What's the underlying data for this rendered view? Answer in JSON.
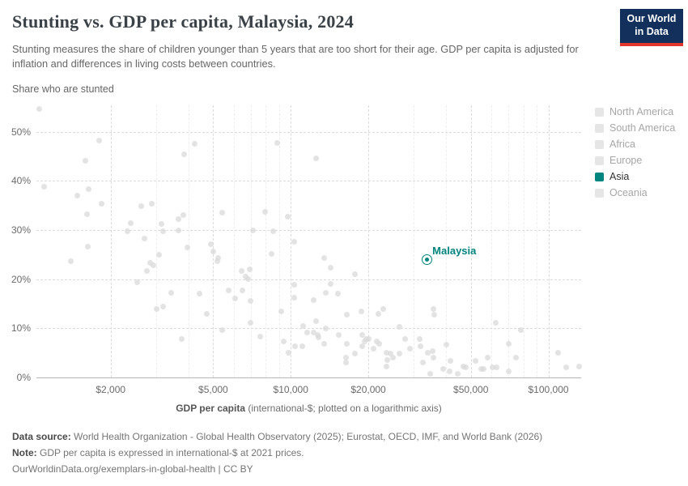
{
  "header": {
    "title": "Stunting vs. GDP per capita, Malaysia, 2024",
    "subtitle": "Stunting measures the share of children younger than 5 years that are too short for their age. GDP per capita is adjusted for inflation and differences in living costs between countries.",
    "logo": {
      "line1": "Our World",
      "line2": "in Data",
      "bg_color": "#12305b",
      "bar_color": "#e0362c"
    }
  },
  "chart_data": {
    "type": "scatter",
    "title": "Stunting vs. GDP per capita, Malaysia, 2024",
    "ylabel": "Share who are stunted",
    "xlabel_bold": "GDP per capita",
    "xlabel_rest": " (international-$; plotted on a logarithmic axis)",
    "x_scale": "log",
    "grid": true,
    "xlim": [
      1030,
      134000
    ],
    "ylim": [
      0,
      55.4
    ],
    "x_ticks": [
      {
        "value": 2000,
        "label": "$2,000"
      },
      {
        "value": 5000,
        "label": "$5,000"
      },
      {
        "value": 10000,
        "label": "$10,000"
      },
      {
        "value": 20000,
        "label": "$20,000"
      },
      {
        "value": 50000,
        "label": "$50,000"
      },
      {
        "value": 100000,
        "label": "$100,000"
      }
    ],
    "x_minor_ticks": [
      3000,
      4000,
      6000,
      7000,
      8000,
      9000,
      30000,
      40000,
      60000,
      70000,
      80000,
      90000
    ],
    "y_ticks": [
      {
        "value": 0,
        "label": "0%"
      },
      {
        "value": 10,
        "label": "10%"
      },
      {
        "value": 20,
        "label": "20%"
      },
      {
        "value": 30,
        "label": "30%"
      },
      {
        "value": 40,
        "label": "40%"
      },
      {
        "value": 50,
        "label": "50%"
      }
    ],
    "highlight": {
      "name": "Malaysia",
      "gdp": 33700,
      "stunting_pct": 24.0,
      "color": "#00847e"
    },
    "point_color": "#d9d9d9",
    "points": [
      [
        1060,
        54.6
      ],
      [
        1800,
        48.3
      ],
      [
        4240,
        47.5
      ],
      [
        3860,
        45.4
      ],
      [
        1590,
        44.1
      ],
      [
        1100,
        38.8
      ],
      [
        1640,
        38.3
      ],
      [
        1480,
        37.0
      ],
      [
        1840,
        35.3
      ],
      [
        2620,
        34.8
      ],
      [
        2880,
        35.3
      ],
      [
        1620,
        33.2
      ],
      [
        3840,
        33.0
      ],
      [
        3670,
        32.2
      ],
      [
        2390,
        31.4
      ],
      [
        3140,
        31.2
      ],
      [
        2330,
        29.7
      ],
      [
        3200,
        29.7
      ],
      [
        3670,
        29.9
      ],
      [
        2700,
        28.2
      ],
      [
        8850,
        47.7
      ],
      [
        12500,
        44.6
      ],
      [
        5420,
        33.5
      ],
      [
        7940,
        33.8
      ],
      [
        9720,
        32.8
      ],
      [
        7130,
        30.0
      ],
      [
        8540,
        29.7
      ],
      [
        10300,
        27.7
      ],
      [
        1630,
        26.6
      ],
      [
        1400,
        23.6
      ],
      [
        3090,
        24.9
      ],
      [
        3980,
        26.4
      ],
      [
        4900,
        27.1
      ],
      [
        5010,
        25.7
      ],
      [
        5190,
        23.6
      ],
      [
        2840,
        23.3
      ],
      [
        2920,
        22.8
      ],
      [
        2770,
        21.6
      ],
      [
        2530,
        19.3
      ],
      [
        3440,
        17.2
      ],
      [
        4430,
        17.0
      ],
      [
        3020,
        13.9
      ],
      [
        3200,
        14.4
      ],
      [
        4730,
        12.9
      ],
      [
        3780,
        7.8
      ],
      [
        8410,
        25.1
      ],
      [
        5230,
        24.4
      ],
      [
        6440,
        21.6
      ],
      [
        6920,
        22.0
      ],
      [
        6680,
        20.5
      ],
      [
        6830,
        20.1
      ],
      [
        13500,
        24.3
      ],
      [
        14300,
        22.3
      ],
      [
        17800,
        21.0
      ],
      [
        14300,
        19.1
      ],
      [
        10300,
        18.8
      ],
      [
        5740,
        17.7
      ],
      [
        6490,
        17.8
      ],
      [
        13700,
        17.3
      ],
      [
        15200,
        17.0
      ],
      [
        6080,
        16.0
      ],
      [
        10300,
        16.2
      ],
      [
        6970,
        15.5
      ],
      [
        12300,
        15.8
      ],
      [
        9170,
        13.4
      ],
      [
        22900,
        14.0
      ],
      [
        21900,
        12.9
      ],
      [
        18850,
        13.4
      ],
      [
        16560,
        12.7
      ],
      [
        6970,
        11.1
      ],
      [
        5420,
        9.7
      ],
      [
        11200,
        10.4
      ],
      [
        12500,
        11.4
      ],
      [
        11600,
        9.2
      ],
      [
        12300,
        9.1
      ],
      [
        12700,
        8.6
      ],
      [
        12800,
        8.1
      ],
      [
        13700,
        9.9
      ],
      [
        15400,
        8.6
      ],
      [
        7610,
        8.3
      ],
      [
        9370,
        7.4
      ],
      [
        9790,
        5.1
      ],
      [
        10400,
        6.4
      ],
      [
        11100,
        6.4
      ],
      [
        13500,
        6.9
      ],
      [
        16500,
        6.9
      ],
      [
        17700,
        4.8
      ],
      [
        16400,
        4.0
      ],
      [
        16400,
        3.1
      ],
      [
        19000,
        8.7
      ],
      [
        19700,
        7.9
      ],
      [
        19400,
        7.4
      ],
      [
        20100,
        7.8
      ],
      [
        21500,
        7.3
      ],
      [
        22100,
        6.9
      ],
      [
        19000,
        6.3
      ],
      [
        21000,
        5.9
      ],
      [
        23600,
        5.1
      ],
      [
        24400,
        4.8
      ],
      [
        24900,
        4.0
      ],
      [
        23700,
        3.5
      ],
      [
        23600,
        2.3
      ],
      [
        26400,
        10.3
      ],
      [
        35800,
        13.9
      ],
      [
        36100,
        12.7
      ],
      [
        62300,
        11.1
      ],
      [
        78000,
        9.7
      ],
      [
        27800,
        7.8
      ],
      [
        26400,
        4.8
      ],
      [
        29000,
        5.9
      ],
      [
        31600,
        7.8
      ],
      [
        31800,
        6.3
      ],
      [
        34000,
        5.1
      ],
      [
        35500,
        5.3
      ],
      [
        35800,
        4.1
      ],
      [
        32600,
        3.1
      ],
      [
        34700,
        0.7
      ],
      [
        40300,
        6.6
      ],
      [
        39000,
        1.7
      ],
      [
        41400,
        1.3
      ],
      [
        41700,
        3.3
      ],
      [
        44400,
        0.7
      ],
      [
        46700,
        2.3
      ],
      [
        47700,
        2.0
      ],
      [
        52000,
        3.3
      ],
      [
        55000,
        1.7
      ],
      [
        56200,
        1.8
      ],
      [
        58300,
        4.0
      ],
      [
        60900,
        2.1
      ],
      [
        62700,
        2.1
      ],
      [
        70000,
        6.9
      ],
      [
        74600,
        4.0
      ],
      [
        70000,
        1.2
      ],
      [
        109000,
        5.1
      ],
      [
        117000,
        2.0
      ],
      [
        132000,
        2.3
      ]
    ]
  },
  "legend": {
    "active_color": "#00847e",
    "inactive_swatch_color": "#e6e6e6",
    "items": [
      {
        "label": "North America",
        "active": false
      },
      {
        "label": "South America",
        "active": false
      },
      {
        "label": "Africa",
        "active": false
      },
      {
        "label": "Europe",
        "active": false
      },
      {
        "label": "Asia",
        "active": true
      },
      {
        "label": "Oceania",
        "active": false
      }
    ]
  },
  "footer": {
    "source_label": "Data source:",
    "source_text": " World Health Organization - Global Health Observatory (2025); Eurostat, OECD, IMF, and World Bank (2026)",
    "note_label": "Note:",
    "note_text": " GDP per capita is expressed in international-$ at 2021 prices.",
    "link_text": "OurWorldinData.org/exemplars-in-global-health | CC BY"
  }
}
